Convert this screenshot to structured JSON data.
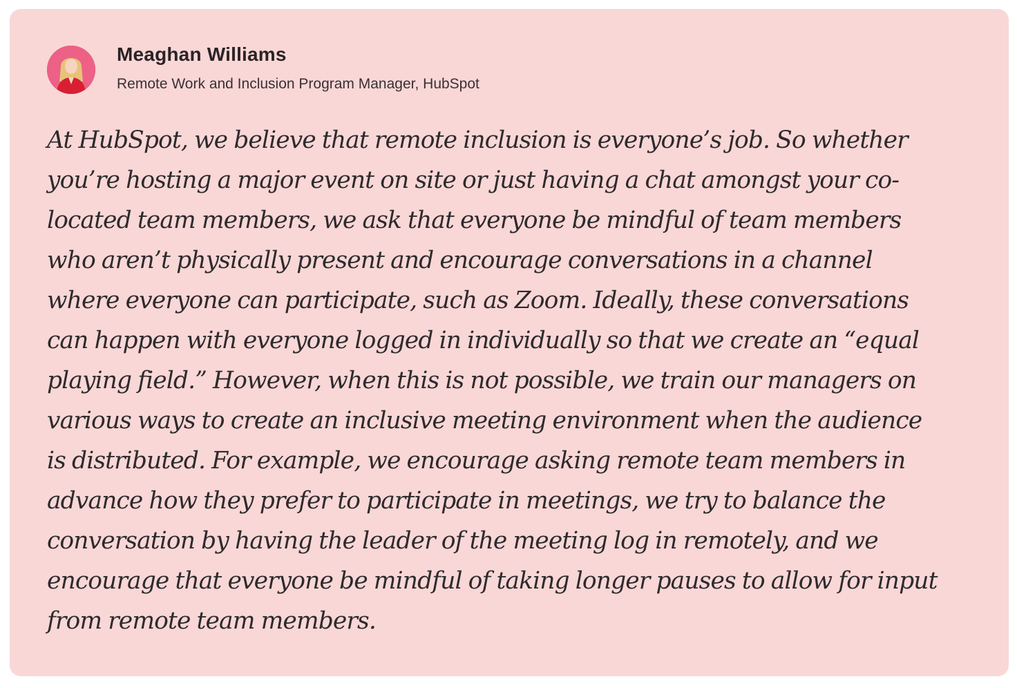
{
  "testimonial": {
    "author": {
      "name": "Meaghan Williams",
      "title": "Remote Work and Inclusion Program Manager, HubSpot"
    },
    "quote_lines": [
      "At HubSpot, we believe that remote inclusion is everyone’s job. So whether",
      "you’re hosting a major event on site or just having a chat amongst your co-",
      "located team members, we ask that everyone be mindful of team members",
      "who aren’t physically present and encourage conversations in a channel",
      "where everyone can participate, such as Zoom. Ideally, these conversations",
      "can happen with everyone logged in individually so that we create an “equal",
      "playing field.” However, when this is not possible, we train our managers on",
      "various ways to create an inclusive meeting environment when the audience",
      "is distributed. For example, we encourage asking remote team members in",
      "advance how they prefer to participate in meetings, we try to balance the",
      "conversation by having the leader of the meeting log in remotely, and we",
      "encourage that everyone be mindful of taking longer pauses to allow for input",
      "from remote team members."
    ]
  },
  "colors": {
    "card_background": "#f9d7d7",
    "text": "#2e2a2c",
    "avatar_accent": "#e84a6a"
  }
}
